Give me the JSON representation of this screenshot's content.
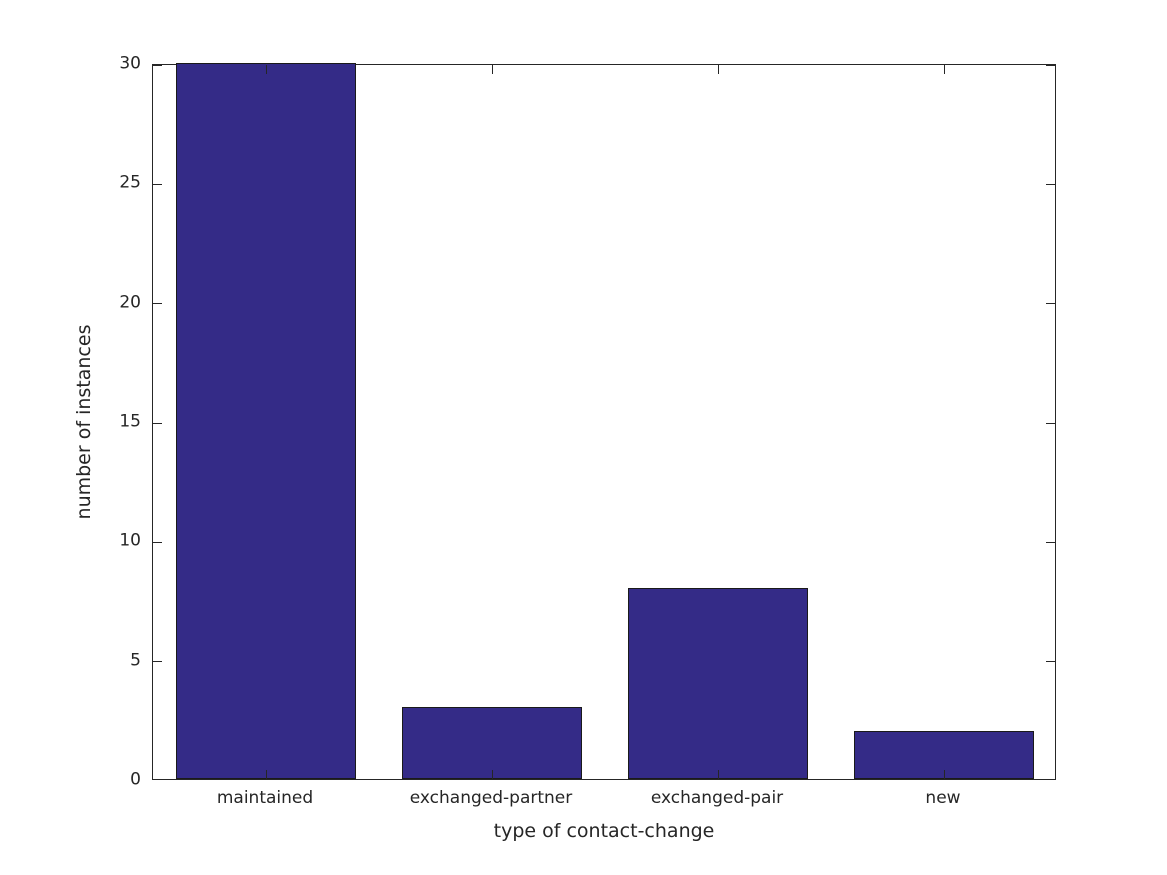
{
  "chart_data": {
    "type": "bar",
    "title": "",
    "categories": [
      "maintained",
      "exchanged-partner",
      "exchanged-pair",
      "new"
    ],
    "values": [
      30,
      3,
      8,
      2
    ],
    "xlabel": "type of contact-change",
    "ylabel": "number of instances",
    "ylim": [
      0,
      30
    ],
    "yticks": [
      0,
      5,
      10,
      15,
      20,
      25,
      30
    ],
    "bar_width_fraction": 0.8,
    "grid": false,
    "legend": null,
    "frame": "box-with-inward-ticks",
    "colors": {
      "bar_fill": "#342b87",
      "bar_edge": "#1a1a1a",
      "axis": "#262626",
      "text": "#262626",
      "background": "#ffffff"
    }
  }
}
